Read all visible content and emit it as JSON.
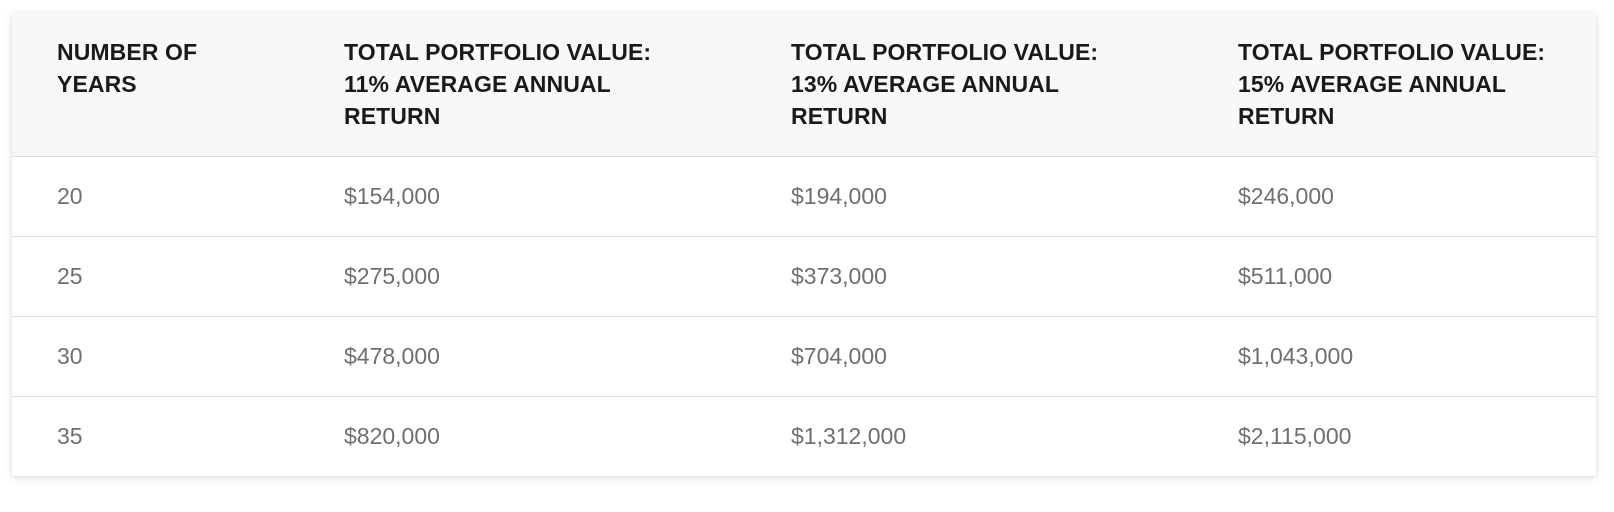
{
  "table": {
    "headers": [
      [
        "NUMBER OF",
        "YEARS"
      ],
      [
        "TOTAL PORTFOLIO VALUE:",
        "11% AVERAGE ANNUAL",
        "RETURN"
      ],
      [
        "TOTAL PORTFOLIO VALUE:",
        "13% AVERAGE ANNUAL",
        "RETURN"
      ],
      [
        "TOTAL PORTFOLIO VALUE:",
        "15% AVERAGE ANNUAL",
        "RETURN"
      ]
    ],
    "rows": [
      [
        "20",
        "$154,000",
        "$194,000",
        "$246,000"
      ],
      [
        "25",
        "$275,000",
        "$373,000",
        "$511,000"
      ],
      [
        "30",
        "$478,000",
        "$704,000",
        "$1,043,000"
      ],
      [
        "35",
        "$820,000",
        "$1,312,000",
        "$2,115,000"
      ]
    ]
  }
}
